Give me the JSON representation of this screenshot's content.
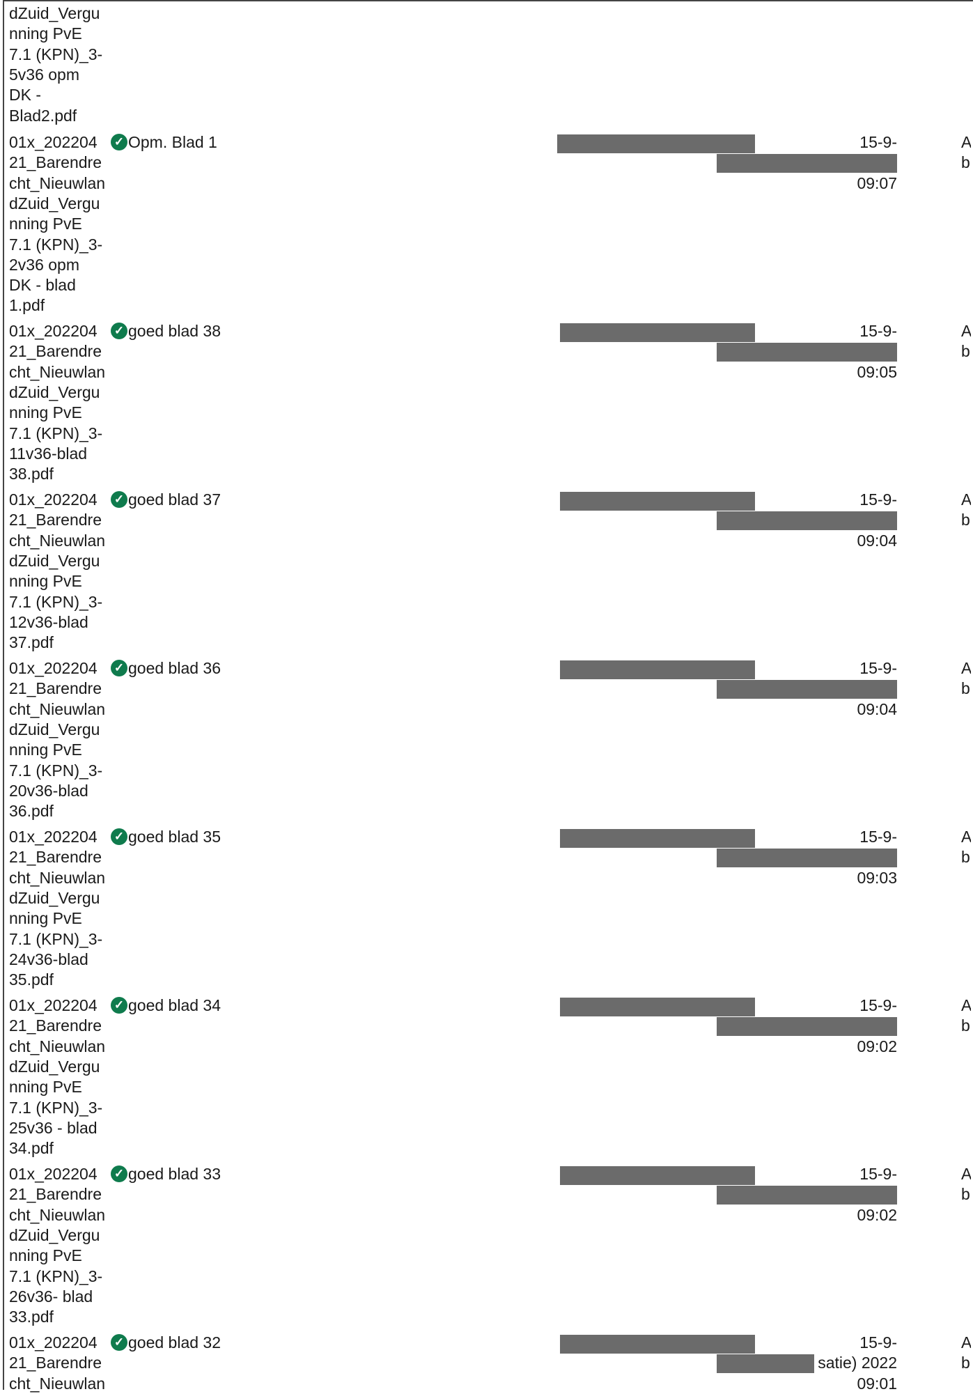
{
  "top_fragment": [
    "dZuid_Vergu",
    "nning PvE",
    "7.1 (KPN)_3-",
    "5v36 opm",
    "DK -",
    "Blad2.pdf"
  ],
  "rows": [
    {
      "file_lines": [
        "01x_202204",
        "21_Barendre",
        "cht_Nieuwlan",
        "dZuid_Vergu",
        "nning PvE",
        "7.1 (KPN)_3-",
        "2v36 opm",
        "DK - blad",
        "1.pdf"
      ],
      "comment": "Opm. Blad 1",
      "date_line1": "15-9-",
      "date_line2": "",
      "date_line3": "09:07",
      "edge1": "A",
      "edge2": "b"
    },
    {
      "file_lines": [
        "01x_202204",
        "21_Barendre",
        "cht_Nieuwlan",
        "dZuid_Vergu",
        "nning PvE",
        "7.1 (KPN)_3-",
        "11v36-blad",
        "38.pdf"
      ],
      "comment": "goed blad 38",
      "date_line1": "15-9-",
      "date_line2": "",
      "date_line3": "09:05",
      "edge1": "A",
      "edge2": "b"
    },
    {
      "file_lines": [
        "01x_202204",
        "21_Barendre",
        "cht_Nieuwlan",
        "dZuid_Vergu",
        "nning PvE",
        "7.1 (KPN)_3-",
        "12v36-blad",
        "37.pdf"
      ],
      "comment": "goed blad 37",
      "date_line1": "15-9-",
      "date_line2": "",
      "date_line3": "09:04",
      "edge1": "A",
      "edge2": "b"
    },
    {
      "file_lines": [
        "01x_202204",
        "21_Barendre",
        "cht_Nieuwlan",
        "dZuid_Vergu",
        "nning PvE",
        "7.1 (KPN)_3-",
        "20v36-blad",
        "36.pdf"
      ],
      "comment": "goed blad 36",
      "date_line1": "15-9-",
      "date_line2": "",
      "date_line3": "09:04",
      "edge1": "A",
      "edge2": "b"
    },
    {
      "file_lines": [
        "01x_202204",
        "21_Barendre",
        "cht_Nieuwlan",
        "dZuid_Vergu",
        "nning PvE",
        "7.1 (KPN)_3-",
        "24v36-blad",
        "35.pdf"
      ],
      "comment": "goed blad 35",
      "date_line1": "15-9-",
      "date_line2": "",
      "date_line3": "09:03",
      "edge1": "A",
      "edge2": "b"
    },
    {
      "file_lines": [
        "01x_202204",
        "21_Barendre",
        "cht_Nieuwlan",
        "dZuid_Vergu",
        "nning PvE",
        "7.1 (KPN)_3-",
        "25v36 - blad",
        "34.pdf"
      ],
      "comment": "goed blad 34",
      "date_line1": "15-9-",
      "date_line2": "",
      "date_line3": "09:02",
      "edge1": "A",
      "edge2": "b"
    },
    {
      "file_lines": [
        "01x_202204",
        "21_Barendre",
        "cht_Nieuwlan",
        "dZuid_Vergu",
        "nning PvE",
        "7.1 (KPN)_3-",
        "26v36- blad",
        "33.pdf"
      ],
      "comment": "goed blad 33",
      "date_line1": "15-9-",
      "date_line2": "",
      "date_line3": "09:02",
      "edge1": "A",
      "edge2": "b"
    },
    {
      "file_lines": [
        "01x_202204",
        "21_Barendre",
        "cht_Nieuwlan"
      ],
      "comment": "goed blad 32",
      "date_line1": "15-9-",
      "date_line2": "satie) 2022",
      "date_line3": "09:01",
      "edge1": "A",
      "edge2": "b"
    }
  ],
  "icons": {
    "check": "check-circle-icon"
  },
  "colors": {
    "check": "#0f7b4d",
    "redaction": "#6b6b6b"
  }
}
